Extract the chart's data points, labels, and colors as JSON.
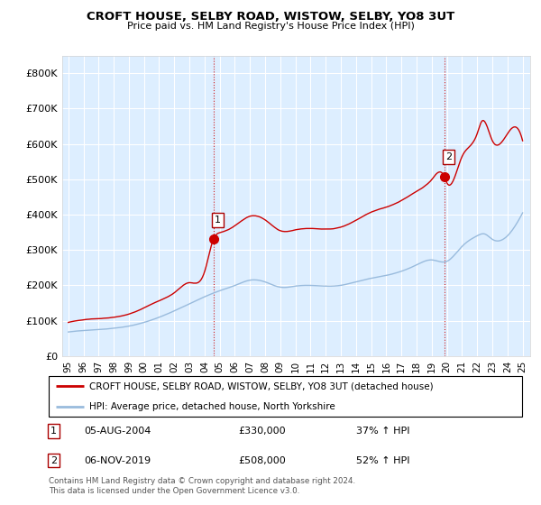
{
  "title": "CROFT HOUSE, SELBY ROAD, WISTOW, SELBY, YO8 3UT",
  "subtitle": "Price paid vs. HM Land Registry's House Price Index (HPI)",
  "legend_label1": "CROFT HOUSE, SELBY ROAD, WISTOW, SELBY, YO8 3UT (detached house)",
  "legend_label2": "HPI: Average price, detached house, North Yorkshire",
  "footnote": "Contains HM Land Registry data © Crown copyright and database right 2024.\nThis data is licensed under the Open Government Licence v3.0.",
  "sale1_date": "05-AUG-2004",
  "sale1_price": 330000,
  "sale1_hpi": "37% ↑ HPI",
  "sale2_date": "06-NOV-2019",
  "sale2_price": 508000,
  "sale2_hpi": "52% ↑ HPI",
  "sale1_label": "1",
  "sale2_label": "2",
  "sale1_x": 2004.58,
  "sale1_y": 330000,
  "sale2_x": 2019.83,
  "sale2_y": 508000,
  "property_color": "#cc0000",
  "hpi_color": "#99bbdd",
  "dashed_color": "#cc0000",
  "bg_color": "#ddeeff",
  "ylim": [
    0,
    850000
  ],
  "yticks": [
    0,
    100000,
    200000,
    300000,
    400000,
    500000,
    600000,
    700000,
    800000
  ],
  "ytick_labels": [
    "£0",
    "£100K",
    "£200K",
    "£300K",
    "£400K",
    "£500K",
    "£600K",
    "£700K",
    "£800K"
  ],
  "xlim_start": 1994.6,
  "xlim_end": 2025.5,
  "xtick_years": [
    1995,
    1996,
    1997,
    1998,
    1999,
    2000,
    2001,
    2002,
    2003,
    2004,
    2005,
    2006,
    2007,
    2008,
    2009,
    2010,
    2011,
    2012,
    2013,
    2014,
    2015,
    2016,
    2017,
    2018,
    2019,
    2020,
    2021,
    2022,
    2023,
    2024,
    2025
  ]
}
